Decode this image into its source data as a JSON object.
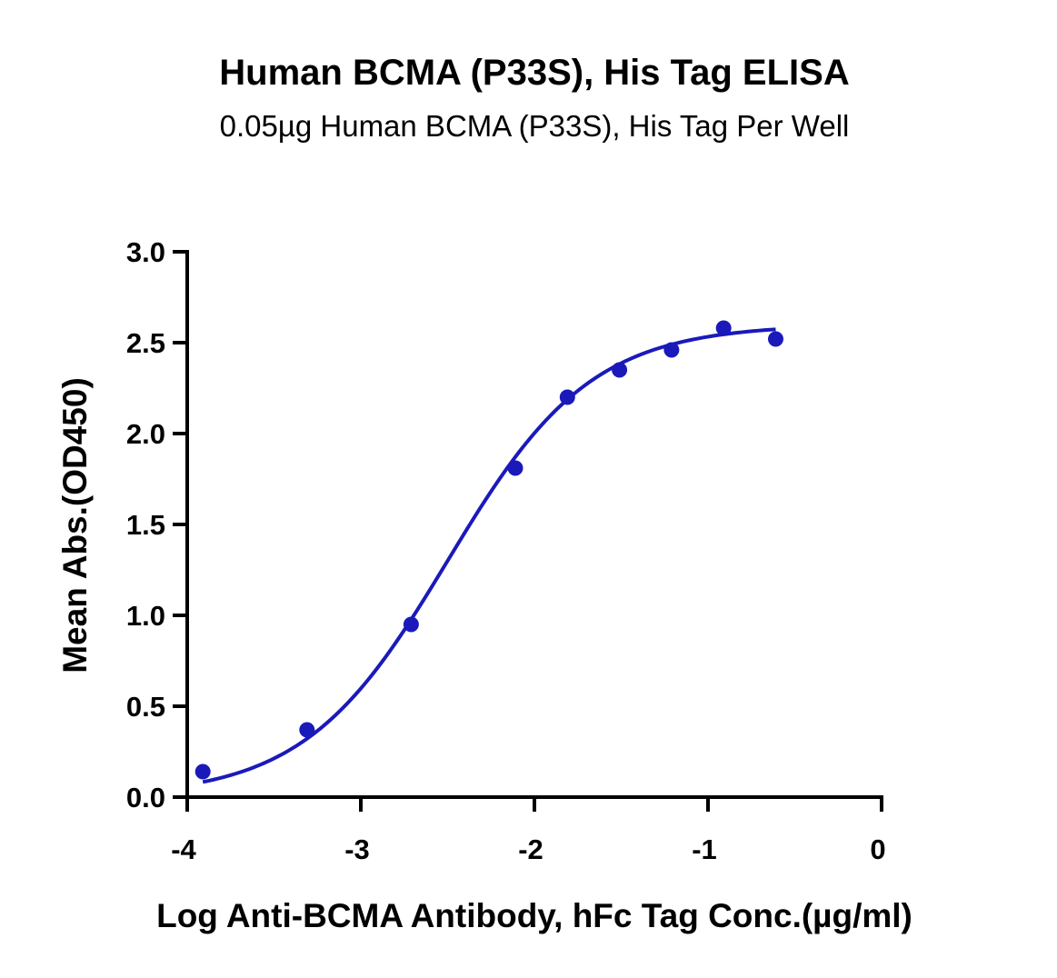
{
  "chart_data": {
    "type": "scatter",
    "title": "Human BCMA (P33S), His Tag ELISA",
    "subtitle": "0.05µg Human BCMA (P33S), His Tag Per Well",
    "xlabel": "Log Anti-BCMA Antibody, hFc Tag Conc.(µg/ml)",
    "ylabel": "Mean Abs.(OD450)",
    "xlim": [
      -4,
      0
    ],
    "ylim": [
      0,
      3.0
    ],
    "x_ticks": [
      -4,
      -3,
      -2,
      -1,
      0
    ],
    "x_tick_labels": [
      "-4",
      "-3",
      "-2",
      "-1",
      "0"
    ],
    "y_ticks": [
      0,
      0.5,
      1.0,
      1.5,
      2.0,
      2.5,
      3.0
    ],
    "y_tick_labels": [
      "0.0",
      "0.5",
      "1.0",
      "1.5",
      "2.0",
      "2.5",
      "3.0"
    ],
    "series_color": "#1a1aba",
    "series": [
      {
        "points": [
          {
            "x": -3.91,
            "y": 0.14
          },
          {
            "x": -3.31,
            "y": 0.37
          },
          {
            "x": -2.71,
            "y": 0.95
          },
          {
            "x": -2.11,
            "y": 1.81
          },
          {
            "x": -1.81,
            "y": 2.2
          },
          {
            "x": -1.51,
            "y": 2.35
          },
          {
            "x": -1.21,
            "y": 2.46
          },
          {
            "x": -0.91,
            "y": 2.58
          },
          {
            "x": -0.61,
            "y": 2.52
          }
        ]
      }
    ],
    "fit_curve": {
      "type": "4PL",
      "bottom": 0.0,
      "top": 2.6,
      "log_ec50": -2.5,
      "hill": 1.05,
      "x_range": [
        -3.91,
        -0.61
      ]
    }
  }
}
